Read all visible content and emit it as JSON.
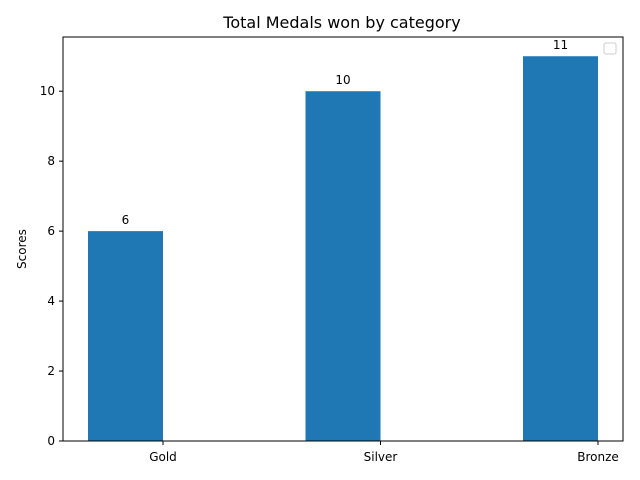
{
  "chart_data": {
    "type": "bar",
    "title": "Total Medals won by category",
    "xlabel": "",
    "ylabel": "Scores",
    "categories": [
      "Gold",
      "Silver",
      "Bronze"
    ],
    "values": [
      6,
      10,
      11
    ],
    "ylim": [
      0,
      11.55
    ],
    "yticks": [
      0,
      2,
      4,
      6,
      8,
      10
    ],
    "bar_color": "#1f77b4",
    "legend": {
      "placement": "top-right",
      "entries": []
    },
    "grid": false
  }
}
